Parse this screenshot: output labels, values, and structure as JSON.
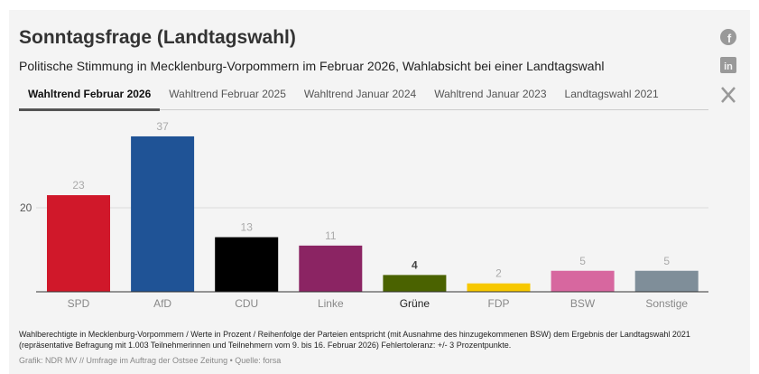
{
  "header": {
    "title": "Sonntagsfrage (Landtagswahl)",
    "subtitle": "Politische Stimmung in Mecklenburg-Vorpommern im Februar 2026, Wahlabsicht bei einer Landtagswahl"
  },
  "tabs": [
    {
      "label": "Wahltrend Februar 2026"
    },
    {
      "label": "Wahltrend Februar 2025"
    },
    {
      "label": "Wahltrend Januar 2024"
    },
    {
      "label": "Wahltrend Januar 2023"
    },
    {
      "label": "Landtagswahl 2021"
    }
  ],
  "social": [
    "facebook-icon",
    "linkedin-icon",
    "x-icon"
  ],
  "chart_data": {
    "type": "bar",
    "title": "Sonntagsfrage (Landtagswahl)",
    "categories": [
      "SPD",
      "AfD",
      "CDU",
      "Linke",
      "Grüne",
      "FDP",
      "BSW",
      "Sonstige"
    ],
    "values": [
      23,
      37,
      13,
      11,
      4,
      2,
      5,
      5
    ],
    "colors": [
      "#d0182a",
      "#1f5396",
      "#000000",
      "#8b2463",
      "#4a6200",
      "#f7c800",
      "#d7679f",
      "#7f8e99"
    ],
    "yticks": [
      20
    ],
    "ylim": [
      0,
      40
    ],
    "grid": true
  },
  "footer": {
    "note": "Wahlberechtigte in Mecklenburg-Vorpommern / Werte in Prozent / Reihenfolge der Parteien entspricht (mit Ausnahme des hinzugekommenen BSW) dem Ergebnis der Landtagswahl 2021 (repräsentative Befragung mit 1.003 Teilnehmerinnen und Teilnehmern vom 9. bis 16. Februar 2026) Fehlertoleranz: +/- 3 Prozentpunkte.",
    "source": "Grafik: NDR MV // Umfrage im Auftrag der Ostsee Zeitung  • Quelle: forsa"
  }
}
